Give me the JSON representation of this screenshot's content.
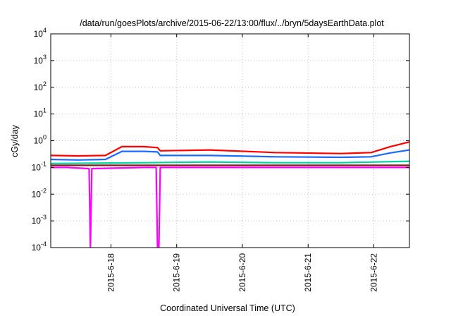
{
  "chart_data": {
    "type": "line",
    "title": "/data/run/goesPlots/archive/2015-06-22/13:00/flux/../bryn/5daysEarthData.plot",
    "xlabel": "Coordinated Universal Time (UTC)",
    "ylabel": "cGy/day",
    "yscale": "log",
    "ylim": [
      0.0001,
      10000
    ],
    "yticks": [
      {
        "value": 0.0001,
        "base": "10",
        "exp": "-4"
      },
      {
        "value": 0.001,
        "base": "10",
        "exp": "-3"
      },
      {
        "value": 0.01,
        "base": "10",
        "exp": "-2"
      },
      {
        "value": 0.1,
        "base": "10",
        "exp": "-1"
      },
      {
        "value": 1,
        "base": "10",
        "exp": "0"
      },
      {
        "value": 10,
        "base": "10",
        "exp": "1"
      },
      {
        "value": 100,
        "base": "10",
        "exp": "2"
      },
      {
        "value": 1000,
        "base": "10",
        "exp": "3"
      },
      {
        "value": 10000,
        "base": "10",
        "exp": "4"
      }
    ],
    "xlim": [
      "2015-06-17T02:00",
      "2015-06-22T13:00"
    ],
    "xticks": [
      {
        "value": "2015-06-18T00:00",
        "label": "2015-6-18"
      },
      {
        "value": "2015-06-19T00:00",
        "label": "2015-6-19"
      },
      {
        "value": "2015-06-20T00:00",
        "label": "2015-6-20"
      },
      {
        "value": "2015-06-21T00:00",
        "label": "2015-6-21"
      },
      {
        "value": "2015-06-22T00:00",
        "label": "2015-6-22"
      }
    ],
    "grid": true,
    "legend": "none",
    "series": [
      {
        "color": "#ff0000",
        "values": [
          {
            "x": "2015-06-17T02:00",
            "y": 0.28
          },
          {
            "x": "2015-06-17T12:00",
            "y": 0.27
          },
          {
            "x": "2015-06-17T22:00",
            "y": 0.28
          },
          {
            "x": "2015-06-18T04:00",
            "y": 0.6
          },
          {
            "x": "2015-06-18T12:00",
            "y": 0.6
          },
          {
            "x": "2015-06-18T17:00",
            "y": 0.55
          },
          {
            "x": "2015-06-18T18:00",
            "y": 0.42
          },
          {
            "x": "2015-06-19T12:00",
            "y": 0.45
          },
          {
            "x": "2015-06-20T12:00",
            "y": 0.36
          },
          {
            "x": "2015-06-21T12:00",
            "y": 0.33
          },
          {
            "x": "2015-06-21T23:00",
            "y": 0.36
          },
          {
            "x": "2015-06-22T06:00",
            "y": 0.6
          },
          {
            "x": "2015-06-22T13:00",
            "y": 0.9
          }
        ]
      },
      {
        "color": "#1a6bff",
        "values": [
          {
            "x": "2015-06-17T02:00",
            "y": 0.2
          },
          {
            "x": "2015-06-17T12:00",
            "y": 0.19
          },
          {
            "x": "2015-06-17T22:00",
            "y": 0.2
          },
          {
            "x": "2015-06-18T04:00",
            "y": 0.4
          },
          {
            "x": "2015-06-18T12:00",
            "y": 0.4
          },
          {
            "x": "2015-06-18T17:00",
            "y": 0.38
          },
          {
            "x": "2015-06-18T18:00",
            "y": 0.28
          },
          {
            "x": "2015-06-19T12:00",
            "y": 0.28
          },
          {
            "x": "2015-06-20T12:00",
            "y": 0.25
          },
          {
            "x": "2015-06-21T12:00",
            "y": 0.24
          },
          {
            "x": "2015-06-21T23:00",
            "y": 0.25
          },
          {
            "x": "2015-06-22T06:00",
            "y": 0.35
          },
          {
            "x": "2015-06-22T13:00",
            "y": 0.45
          }
        ]
      },
      {
        "color": "#00d4a0",
        "values": [
          {
            "x": "2015-06-17T02:00",
            "y": 0.14
          },
          {
            "x": "2015-06-18T12:00",
            "y": 0.15
          },
          {
            "x": "2015-06-19T12:00",
            "y": 0.16
          },
          {
            "x": "2015-06-20T12:00",
            "y": 0.15
          },
          {
            "x": "2015-06-21T12:00",
            "y": 0.15
          },
          {
            "x": "2015-06-22T13:00",
            "y": 0.17
          }
        ]
      },
      {
        "color": "#8b1a1a",
        "values": [
          {
            "x": "2015-06-17T02:00",
            "y": 0.12
          },
          {
            "x": "2015-06-18T12:00",
            "y": 0.12
          },
          {
            "x": "2015-06-19T12:00",
            "y": 0.12
          },
          {
            "x": "2015-06-20T12:00",
            "y": 0.12
          },
          {
            "x": "2015-06-21T12:00",
            "y": 0.12
          },
          {
            "x": "2015-06-22T13:00",
            "y": 0.12
          }
        ]
      },
      {
        "color": "#ff00ff",
        "values": [
          {
            "x": "2015-06-17T02:00",
            "y": 0.1
          },
          {
            "x": "2015-06-17T08:00",
            "y": 0.1
          },
          {
            "x": "2015-06-17T16:00",
            "y": 0.09
          },
          {
            "x": "2015-06-17T16:30",
            "y": 0.0001
          },
          {
            "x": "2015-06-17T17:00",
            "y": 0.09
          },
          {
            "x": "2015-06-18T12:00",
            "y": 0.1
          },
          {
            "x": "2015-06-18T16:30",
            "y": 0.1
          },
          {
            "x": "2015-06-18T17:00",
            "y": 0.0001
          },
          {
            "x": "2015-06-18T17:30",
            "y": 0.0001
          },
          {
            "x": "2015-06-18T18:00",
            "y": 0.1
          },
          {
            "x": "2015-06-19T12:00",
            "y": 0.1
          },
          {
            "x": "2015-06-20T12:00",
            "y": 0.1
          },
          {
            "x": "2015-06-21T12:00",
            "y": 0.1
          },
          {
            "x": "2015-06-22T13:00",
            "y": 0.1
          }
        ]
      }
    ]
  }
}
